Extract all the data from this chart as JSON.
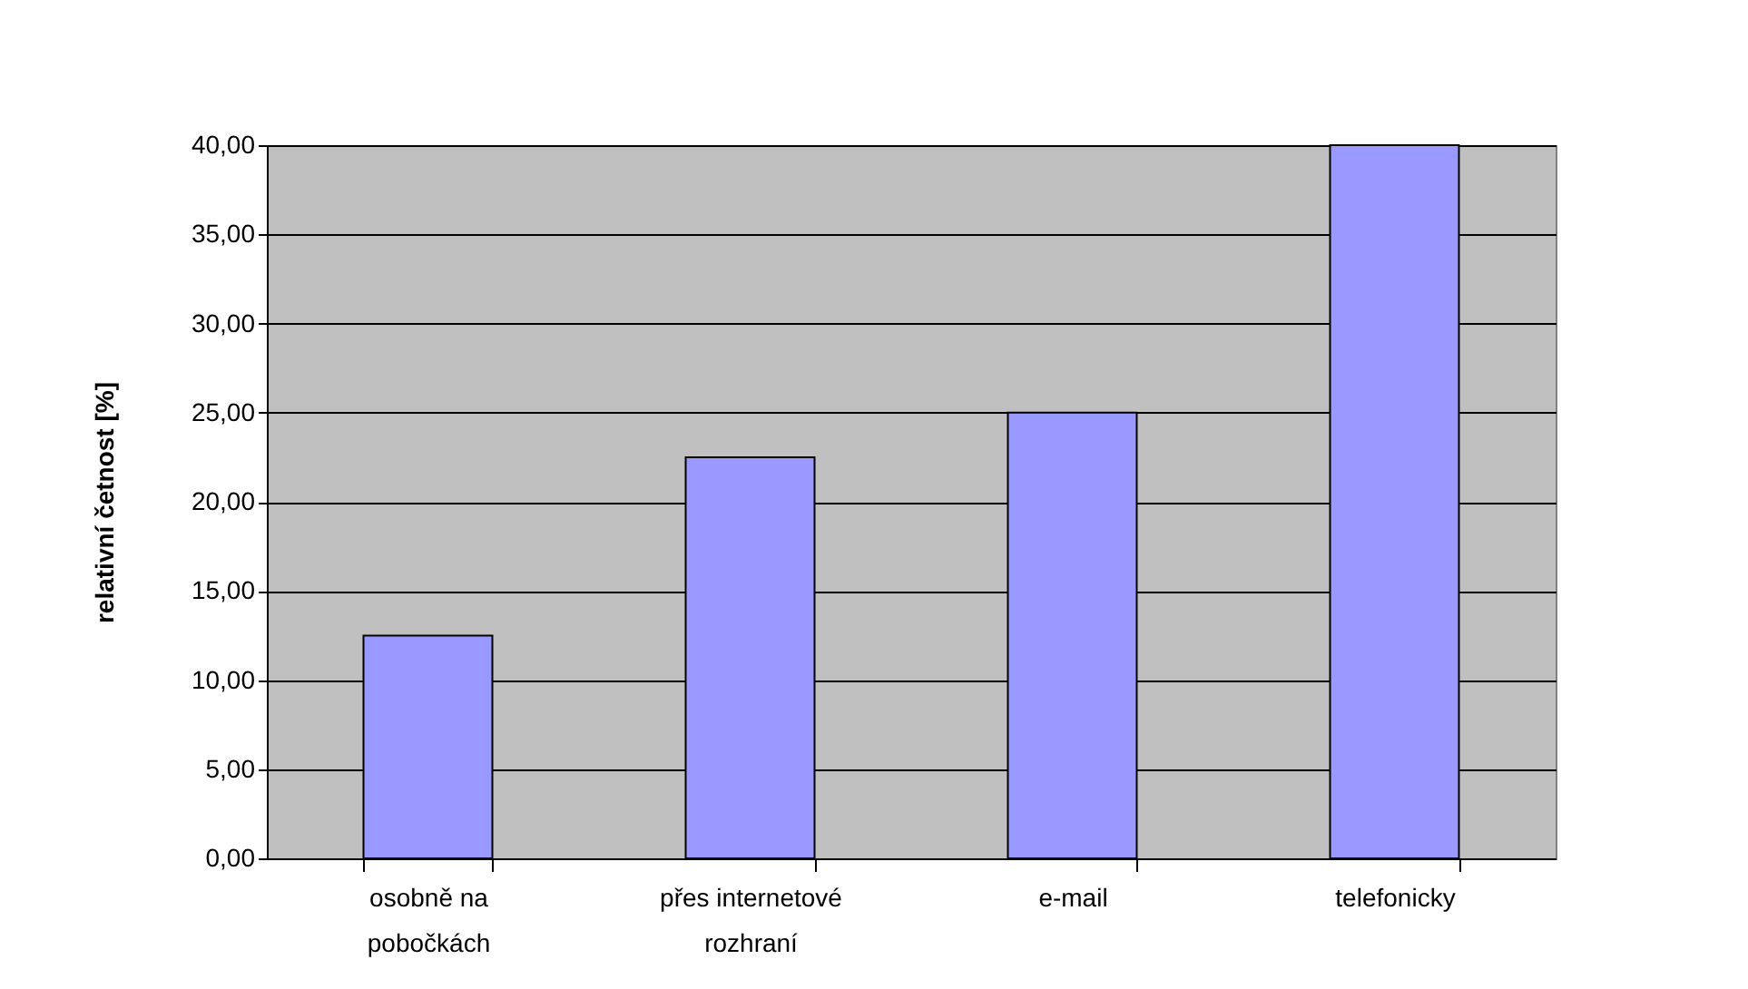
{
  "chart_data": {
    "type": "bar",
    "ylabel": "relativní četnost [%]",
    "categories": [
      "osobně na pobočkách",
      "přes internetové rozhraní",
      "e-mail",
      "telefonicky"
    ],
    "values": [
      12.5,
      22.5,
      25.0,
      40.0
    ],
    "color": "#9999ff",
    "ylim": [
      0,
      40
    ],
    "yticks": [
      {
        "value": 0,
        "label": "0,00"
      },
      {
        "value": 5,
        "label": "5,00"
      },
      {
        "value": 10,
        "label": "10,00"
      },
      {
        "value": 15,
        "label": "15,00"
      },
      {
        "value": 20,
        "label": "20,00"
      },
      {
        "value": 25,
        "label": "25,00"
      },
      {
        "value": 30,
        "label": "30,00"
      },
      {
        "value": 35,
        "label": "35,00"
      },
      {
        "value": 40,
        "label": "40,00"
      }
    ],
    "grid": "y"
  }
}
